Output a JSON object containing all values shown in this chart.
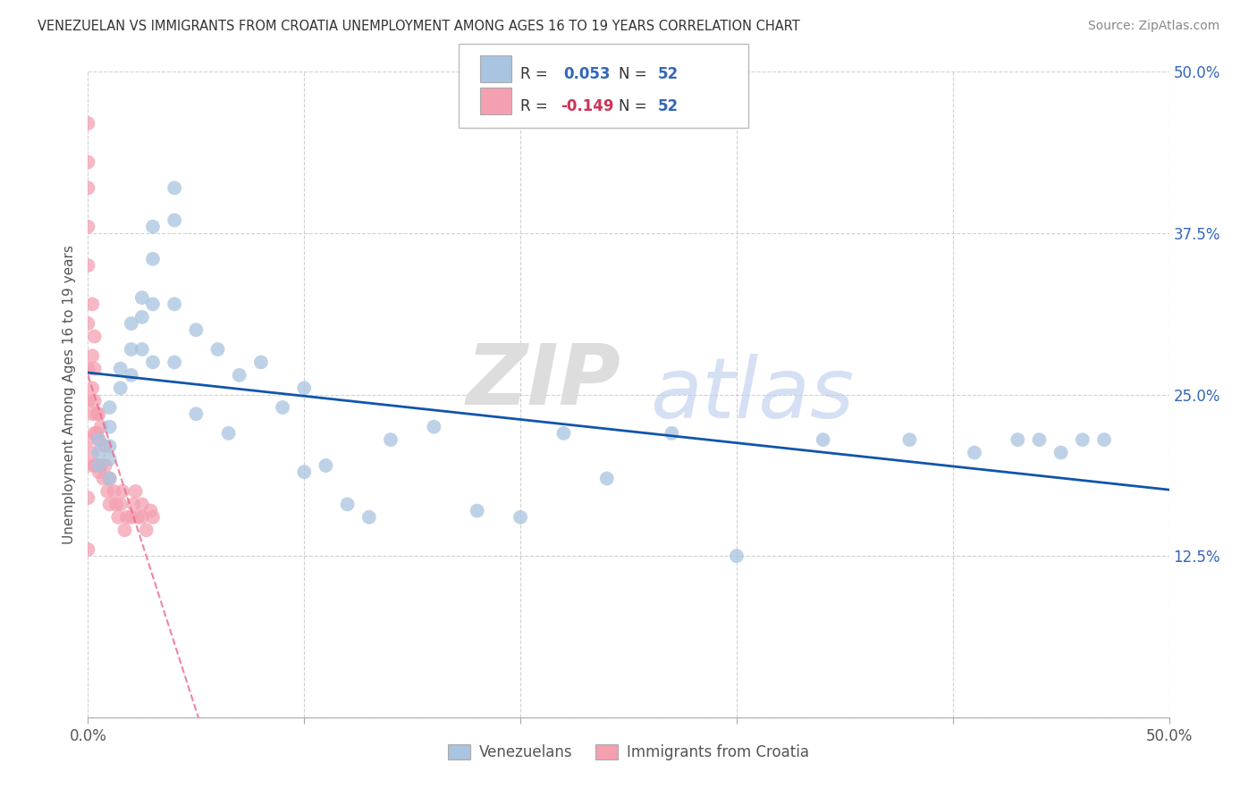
{
  "title": "VENEZUELAN VS IMMIGRANTS FROM CROATIA UNEMPLOYMENT AMONG AGES 16 TO 19 YEARS CORRELATION CHART",
  "source": "Source: ZipAtlas.com",
  "ylabel": "Unemployment Among Ages 16 to 19 years",
  "legend_label1": "Venezuelans",
  "legend_label2": "Immigrants from Croatia",
  "r1": 0.053,
  "n1": 52,
  "r2": -0.149,
  "n2": 52,
  "color_blue": "#A8C4E0",
  "color_pink": "#F4A0B0",
  "color_blue_dark": "#3366AA",
  "color_pink_dark": "#CC3355",
  "color_blue_text": "#3366BB",
  "color_pink_text": "#CC3355",
  "background_color": "#FFFFFF",
  "venezuelan_x": [
    0.005,
    0.005,
    0.005,
    0.01,
    0.01,
    0.01,
    0.01,
    0.01,
    0.015,
    0.015,
    0.02,
    0.02,
    0.02,
    0.025,
    0.025,
    0.025,
    0.03,
    0.03,
    0.03,
    0.03,
    0.04,
    0.04,
    0.04,
    0.04,
    0.05,
    0.05,
    0.06,
    0.065,
    0.07,
    0.08,
    0.09,
    0.1,
    0.1,
    0.11,
    0.12,
    0.13,
    0.14,
    0.16,
    0.18,
    0.2,
    0.22,
    0.24,
    0.27,
    0.3,
    0.34,
    0.38,
    0.41,
    0.43,
    0.44,
    0.45,
    0.46,
    0.47
  ],
  "venezuelan_y": [
    0.215,
    0.205,
    0.195,
    0.24,
    0.225,
    0.21,
    0.2,
    0.185,
    0.27,
    0.255,
    0.305,
    0.285,
    0.265,
    0.325,
    0.31,
    0.285,
    0.38,
    0.355,
    0.32,
    0.275,
    0.41,
    0.385,
    0.32,
    0.275,
    0.3,
    0.235,
    0.285,
    0.22,
    0.265,
    0.275,
    0.24,
    0.255,
    0.19,
    0.195,
    0.165,
    0.155,
    0.215,
    0.225,
    0.16,
    0.155,
    0.22,
    0.185,
    0.22,
    0.125,
    0.215,
    0.215,
    0.205,
    0.215,
    0.215,
    0.205,
    0.215,
    0.215
  ],
  "croatia_x": [
    0.0,
    0.0,
    0.0,
    0.0,
    0.0,
    0.0,
    0.0,
    0.0,
    0.0,
    0.0,
    0.0,
    0.0,
    0.002,
    0.002,
    0.002,
    0.002,
    0.002,
    0.003,
    0.003,
    0.003,
    0.003,
    0.003,
    0.004,
    0.004,
    0.004,
    0.005,
    0.005,
    0.005,
    0.006,
    0.006,
    0.007,
    0.008,
    0.008,
    0.009,
    0.01,
    0.01,
    0.012,
    0.013,
    0.014,
    0.015,
    0.016,
    0.017,
    0.018,
    0.02,
    0.021,
    0.022,
    0.023,
    0.025,
    0.025,
    0.027,
    0.029,
    0.03
  ],
  "croatia_y": [
    0.46,
    0.43,
    0.41,
    0.38,
    0.35,
    0.305,
    0.27,
    0.245,
    0.215,
    0.195,
    0.17,
    0.13,
    0.32,
    0.28,
    0.255,
    0.235,
    0.205,
    0.295,
    0.27,
    0.245,
    0.22,
    0.195,
    0.235,
    0.22,
    0.195,
    0.235,
    0.215,
    0.19,
    0.225,
    0.195,
    0.185,
    0.21,
    0.195,
    0.175,
    0.185,
    0.165,
    0.175,
    0.165,
    0.155,
    0.165,
    0.175,
    0.145,
    0.155,
    0.155,
    0.165,
    0.175,
    0.155,
    0.165,
    0.155,
    0.145,
    0.16,
    0.155
  ],
  "xlim": [
    0.0,
    0.5
  ],
  "ylim": [
    0.0,
    0.5
  ],
  "watermark_zip": "ZIP",
  "watermark_atlas": "atlas",
  "grid_color": "#CCCCCC",
  "ven_line_color": "#1155AA",
  "cro_line_color": "#EE6688"
}
